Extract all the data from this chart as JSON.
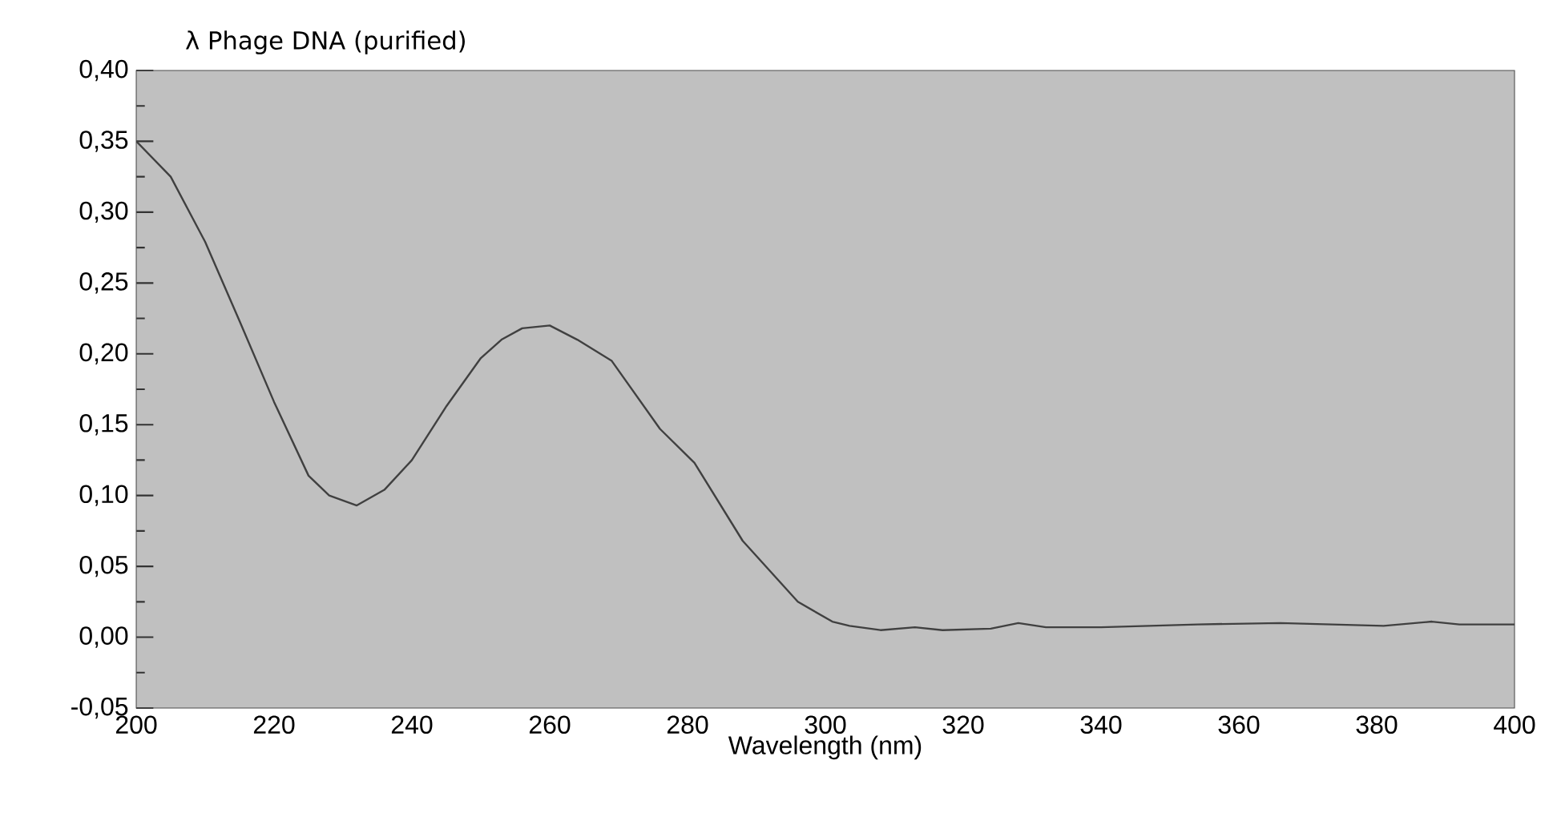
{
  "chart_data": {
    "type": "line",
    "title": "λ Phage DNA (purified)",
    "xlabel": "Wavelength (nm)",
    "x": [
      200,
      205,
      210,
      215,
      220,
      225,
      228,
      232,
      236,
      240,
      245,
      250,
      253,
      256,
      260,
      264,
      269,
      276,
      281,
      288,
      296,
      301,
      303.5,
      308,
      313,
      317,
      324,
      328,
      332,
      340,
      354,
      366,
      381,
      388,
      392,
      400
    ],
    "series": [
      {
        "color": "#404040",
        "values": [
          0.35,
          0.325,
          0.279,
          0.223,
          0.166,
          0.114,
          0.1,
          0.093,
          0.104,
          0.125,
          0.163,
          0.197,
          0.21,
          0.218,
          0.22,
          0.21,
          0.195,
          0.147,
          0.123,
          0.068,
          0.025,
          0.011,
          0.008,
          0.005,
          0.007,
          0.005,
          0.006,
          0.01,
          0.007,
          0.007,
          0.009,
          0.01,
          0.008,
          0.011,
          0.009,
          0.009
        ]
      }
    ],
    "xlim": [
      200,
      400
    ],
    "ylim": [
      -0.05,
      0.4
    ],
    "xticks": [
      200,
      220,
      240,
      260,
      280,
      300,
      320,
      340,
      360,
      380,
      400
    ],
    "yticks": [
      {
        "value": -0.05,
        "label": "-0,05"
      },
      {
        "value": 0,
        "label": "0,00"
      },
      {
        "value": 0.05,
        "label": "0,05"
      },
      {
        "value": 0.1,
        "label": "0,10"
      },
      {
        "value": 0.15,
        "label": "0,15"
      },
      {
        "value": 0.2,
        "label": "0,20"
      },
      {
        "value": 0.25,
        "label": "0,25"
      },
      {
        "value": 0.3,
        "label": "0,30"
      },
      {
        "value": 0.35,
        "label": "0,35"
      },
      {
        "value": 0.4,
        "label": "0,40"
      }
    ]
  }
}
